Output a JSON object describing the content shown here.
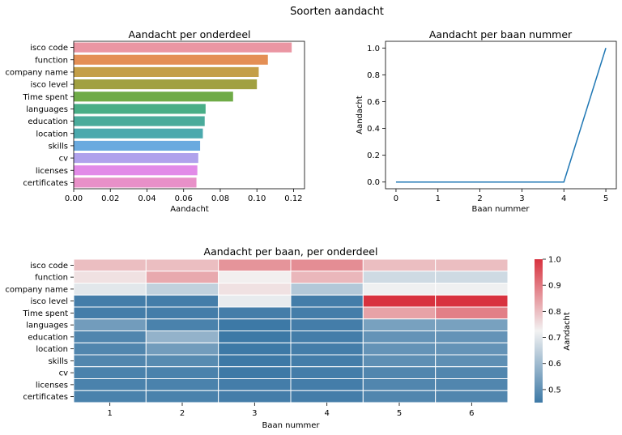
{
  "figure_title": "Soorten aandacht",
  "chart_data": [
    {
      "type": "bar",
      "orientation": "horizontal",
      "title": "Aandacht per onderdeel",
      "xlabel": "Aandacht",
      "ylabel": "",
      "categories": [
        "isco code",
        "function",
        "company name",
        "isco level",
        "Time spent",
        "languages",
        "education",
        "location",
        "skills",
        "cv",
        "licenses",
        "certificates"
      ],
      "values": [
        0.119,
        0.106,
        0.101,
        0.1,
        0.087,
        0.072,
        0.0715,
        0.0705,
        0.069,
        0.068,
        0.0675,
        0.067
      ],
      "colors": [
        "#ea96a3",
        "#e48f55",
        "#c49f48",
        "#a1a041",
        "#6fab47",
        "#49ae87",
        "#4aab9b",
        "#4ba9ad",
        "#6aaadf",
        "#b0a2ec",
        "#e28ae8",
        "#e890c8"
      ],
      "xlim": [
        0,
        0.126
      ],
      "xticks": [
        0.0,
        0.02,
        0.04,
        0.06,
        0.08,
        0.1,
        0.12
      ],
      "xtick_labels": [
        "0.00",
        "0.02",
        "0.04",
        "0.06",
        "0.08",
        "0.10",
        "0.12"
      ]
    },
    {
      "type": "line",
      "title": "Aandacht per baan nummer",
      "xlabel": "Baan nummer",
      "ylabel": "Aandacht",
      "x": [
        0,
        1,
        2,
        3,
        4,
        5
      ],
      "y": [
        0.0,
        0.0,
        0.0,
        0.0,
        0.0,
        1.0
      ],
      "color": "#1f77b4",
      "xlim": [
        -0.25,
        5.25
      ],
      "ylim": [
        -0.05,
        1.05
      ],
      "xticks": [
        0,
        1,
        2,
        3,
        4,
        5
      ],
      "xtick_labels": [
        "0",
        "1",
        "2",
        "3",
        "4",
        "5"
      ],
      "yticks": [
        0.0,
        0.2,
        0.4,
        0.6,
        0.8,
        1.0
      ],
      "ytick_labels": [
        "0.0",
        "0.2",
        "0.4",
        "0.6",
        "0.8",
        "1.0"
      ]
    },
    {
      "type": "heatmap",
      "title": "Aandacht per baan, per onderdeel",
      "xlabel": "Baan nummer",
      "ylabel": "",
      "x_categories": [
        "1",
        "2",
        "3",
        "4",
        "5",
        "6"
      ],
      "y_categories": [
        "isco code",
        "function",
        "company name",
        "isco level",
        "Time spent",
        "languages",
        "education",
        "location",
        "skills",
        "cv",
        "licenses",
        "certificates"
      ],
      "values": [
        [
          0.8,
          0.8,
          0.86,
          0.87,
          0.8,
          0.8
        ],
        [
          0.75,
          0.83,
          0.73,
          0.81,
          0.67,
          0.67
        ],
        [
          0.7,
          0.65,
          0.75,
          0.63,
          0.72,
          0.72
        ],
        [
          0.46,
          0.46,
          0.71,
          0.46,
          1.0,
          1.0
        ],
        [
          0.46,
          0.46,
          0.46,
          0.46,
          0.84,
          0.89
        ],
        [
          0.53,
          0.47,
          0.45,
          0.46,
          0.54,
          0.54
        ],
        [
          0.48,
          0.58,
          0.45,
          0.46,
          0.51,
          0.51
        ],
        [
          0.48,
          0.53,
          0.45,
          0.46,
          0.51,
          0.51
        ],
        [
          0.48,
          0.49,
          0.45,
          0.46,
          0.5,
          0.5
        ],
        [
          0.47,
          0.47,
          0.45,
          0.46,
          0.48,
          0.48
        ],
        [
          0.47,
          0.47,
          0.46,
          0.46,
          0.48,
          0.48
        ],
        [
          0.47,
          0.47,
          0.46,
          0.46,
          0.48,
          0.48
        ]
      ],
      "vmin": 0.45,
      "vmax": 1.0,
      "colormap": [
        "#3d79a6",
        "#f2f2f2",
        "#d8323f"
      ],
      "colorbar_label": "Aandacht",
      "colorbar_ticks": [
        0.5,
        0.6,
        0.7,
        0.8,
        0.9,
        1.0
      ],
      "colorbar_tick_labels": [
        "0.5",
        "0.6",
        "0.7",
        "0.8",
        "0.9",
        "1.0"
      ]
    }
  ]
}
